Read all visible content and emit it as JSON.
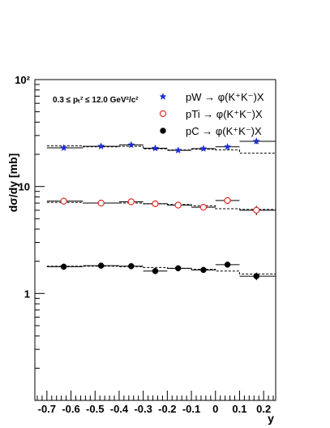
{
  "chart_data": {
    "type": "scatter",
    "ylabel": "dσ/dy [mb]",
    "xlabel": "y",
    "xlim": [
      -0.75,
      0.25
    ],
    "ylim": [
      0.1,
      100
    ],
    "yscale": "log",
    "x_ticks": [
      "-0.7",
      "-0.6",
      "-0.5",
      "-0.4",
      "-0.3",
      "-0.2",
      "-0.1",
      "0",
      "0.1",
      "0.2"
    ],
    "x_tick_values": [
      -0.7,
      -0.6,
      -0.5,
      -0.4,
      -0.3,
      -0.2,
      -0.1,
      0,
      0.1,
      0.2
    ],
    "y_ticks": [
      "1",
      "10",
      "10²"
    ],
    "y_tick_values": [
      1,
      10,
      100
    ],
    "annotation": "0.3 ≤ pₜ² ≤ 12.0 GeV²/c²",
    "legend_position": "top-right",
    "grid": false,
    "bins": [
      [
        -0.7,
        -0.55
      ],
      [
        -0.55,
        -0.4
      ],
      [
        -0.4,
        -0.3
      ],
      [
        -0.3,
        -0.2
      ],
      [
        -0.2,
        -0.1
      ],
      [
        -0.1,
        0.0
      ],
      [
        0.0,
        0.1
      ],
      [
        0.1,
        0.25
      ]
    ],
    "x": [
      -0.63,
      -0.475,
      -0.35,
      -0.25,
      -0.155,
      -0.05,
      0.05,
      0.17
    ],
    "series": [
      {
        "name": "pW → φ(K⁺K⁻)X",
        "marker": "star",
        "color": "#1f2fd6",
        "values": [
          23.0,
          23.8,
          24.5,
          22.8,
          21.8,
          22.6,
          23.5,
          26.5
        ],
        "errors": [
          1.0,
          0.9,
          1.0,
          0.9,
          0.8,
          0.9,
          1.0,
          1.5
        ],
        "model": [
          24.0,
          23.5,
          23.8,
          22.5,
          22.0,
          22.3,
          22.0,
          20.5
        ]
      },
      {
        "name": "pTi → φ(K⁺K⁻)X",
        "marker": "open-circle",
        "color": "#e0201a",
        "values": [
          7.3,
          7.0,
          7.2,
          6.9,
          6.7,
          6.4,
          7.4,
          6.0
        ],
        "errors": [
          0.5,
          0.3,
          0.3,
          0.3,
          0.3,
          0.3,
          0.5,
          0.6
        ],
        "model": [
          7.1,
          7.0,
          7.0,
          6.9,
          6.8,
          6.6,
          6.2,
          6.1
        ]
      },
      {
        "name": "pC → φ(K⁺K⁻)X",
        "marker": "filled-circle",
        "color": "#000000",
        "values": [
          1.78,
          1.82,
          1.8,
          1.62,
          1.72,
          1.66,
          1.86,
          1.45
        ],
        "errors": [
          0.12,
          0.05,
          0.12,
          0.06,
          0.06,
          0.06,
          0.06,
          0.12
        ],
        "model": [
          1.8,
          1.8,
          1.78,
          1.75,
          1.72,
          1.68,
          1.62,
          1.52
        ]
      }
    ]
  }
}
